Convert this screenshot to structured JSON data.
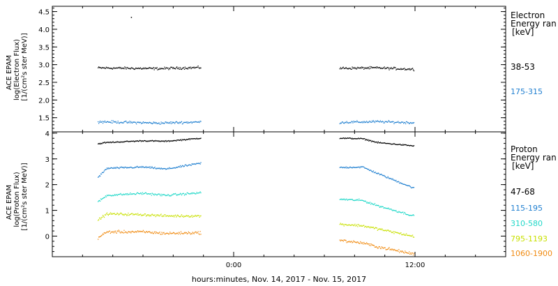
{
  "chart_data": [
    {
      "type": "scatter",
      "panel": "electron",
      "ylabel_lines": [
        "ACE EPAM",
        "log(Electron Flux)",
        "[1/(cm²s ster MeV)]"
      ],
      "ylim": [
        1.1,
        4.65
      ],
      "yticks": [
        1.5,
        2.0,
        2.5,
        3.0,
        3.5,
        4.0,
        4.5
      ],
      "ytick_labels": [
        "1.5",
        "2.0",
        "2.5",
        "3.0",
        "3.5",
        "4.0",
        "4.5"
      ],
      "legend_title": [
        "Electron",
        "Energy ran",
        "[keV]"
      ],
      "legend_entries": [
        {
          "label": "38-53",
          "color": "#000000"
        },
        {
          "label": "175-315",
          "color": "#1f7fd0"
        }
      ],
      "x_segments": [
        [
          -9.0,
          -2.2
        ],
        [
          7.0,
          11.9
        ]
      ],
      "series": [
        {
          "name": "38-53",
          "color": "#000000",
          "levels": [
            [
              -9.0,
              2.92
            ],
            [
              -5.0,
              2.9
            ],
            [
              -2.2,
              2.93
            ],
            [
              7.0,
              2.91
            ],
            [
              9.5,
              2.92
            ],
            [
              11.9,
              2.88
            ]
          ],
          "noise": 0.05
        },
        {
          "name": "175-315",
          "color": "#1f7fd0",
          "levels": [
            [
              -9.0,
              1.4
            ],
            [
              -5.0,
              1.36
            ],
            [
              -2.2,
              1.39
            ],
            [
              7.0,
              1.38
            ],
            [
              9.5,
              1.4
            ],
            [
              11.9,
              1.37
            ]
          ],
          "noise": 0.05
        }
      ],
      "outliers": [
        {
          "x": -6.8,
          "y": 4.35
        }
      ]
    },
    {
      "type": "scatter",
      "panel": "proton",
      "ylabel_lines": [
        "ACE EPAM",
        "log(Proton Flux)",
        "[1/(cm²s ster MeV)]"
      ],
      "ylim": [
        -0.8,
        4.05
      ],
      "yticks": [
        0,
        1,
        2,
        3,
        4
      ],
      "ytick_labels": [
        "0",
        "1",
        "2",
        "3",
        "4"
      ],
      "legend_title": [
        "Proton",
        "Energy ran",
        "[keV]"
      ],
      "legend_entries": [
        {
          "label": "47-68",
          "color": "#000000"
        },
        {
          "label": "115-195",
          "color": "#1f7fd0"
        },
        {
          "label": "310-580",
          "color": "#20d8c8"
        },
        {
          "label": "795-1193",
          "color": "#c8e000"
        },
        {
          "label": "1060-1900",
          "color": "#f08a10"
        }
      ],
      "x_segments": [
        [
          -9.0,
          -2.2
        ],
        [
          7.0,
          11.9
        ]
      ],
      "series": [
        {
          "name": "47-68",
          "color": "#000000",
          "levels": [
            [
              -9.0,
              3.6
            ],
            [
              -8.5,
              3.65
            ],
            [
              -6.0,
              3.72
            ],
            [
              -4.5,
              3.7
            ],
            [
              -2.2,
              3.82
            ],
            [
              7.0,
              3.82
            ],
            [
              8.5,
              3.8
            ],
            [
              9.5,
              3.65
            ],
            [
              11.9,
              3.52
            ]
          ],
          "noise": 0.035
        },
        {
          "name": "115-195",
          "color": "#1f7fd0",
          "levels": [
            [
              -9.0,
              2.3
            ],
            [
              -8.4,
              2.65
            ],
            [
              -6.0,
              2.7
            ],
            [
              -4.5,
              2.62
            ],
            [
              -2.2,
              2.85
            ],
            [
              7.0,
              2.68
            ],
            [
              8.5,
              2.7
            ],
            [
              9.5,
              2.45
            ],
            [
              11.9,
              1.88
            ]
          ],
          "noise": 0.05
        },
        {
          "name": "310-580",
          "color": "#20d8c8",
          "levels": [
            [
              -9.0,
              1.35
            ],
            [
              -8.4,
              1.6
            ],
            [
              -6.0,
              1.68
            ],
            [
              -4.5,
              1.6
            ],
            [
              -2.2,
              1.7
            ],
            [
              7.0,
              1.45
            ],
            [
              8.5,
              1.4
            ],
            [
              9.5,
              1.2
            ],
            [
              11.9,
              0.8
            ]
          ],
          "noise": 0.06
        },
        {
          "name": "795-1193",
          "color": "#c8e000",
          "levels": [
            [
              -9.0,
              0.65
            ],
            [
              -8.4,
              0.88
            ],
            [
              -6.0,
              0.85
            ],
            [
              -4.5,
              0.8
            ],
            [
              -2.2,
              0.8
            ],
            [
              7.0,
              0.48
            ],
            [
              8.5,
              0.42
            ],
            [
              9.5,
              0.3
            ],
            [
              11.9,
              0.0
            ]
          ],
          "noise": 0.07
        },
        {
          "name": "1060-1900",
          "color": "#f08a10",
          "levels": [
            [
              -9.0,
              -0.05
            ],
            [
              -8.4,
              0.18
            ],
            [
              -6.0,
              0.18
            ],
            [
              -4.5,
              0.12
            ],
            [
              -2.2,
              0.15
            ],
            [
              7.0,
              -0.15
            ],
            [
              8.5,
              -0.25
            ],
            [
              9.5,
              -0.4
            ],
            [
              11.9,
              -0.68
            ]
          ],
          "noise": 0.08
        }
      ]
    }
  ],
  "x_axis": {
    "range": [
      -12,
      18
    ],
    "major_ticks": [
      0,
      12
    ],
    "major_tick_labels": [
      "0:00",
      "12:00"
    ],
    "minor_tick_step": 2,
    "xlabel": "hours:minutes, Nov. 14, 2017 - Nov. 15, 2017"
  }
}
